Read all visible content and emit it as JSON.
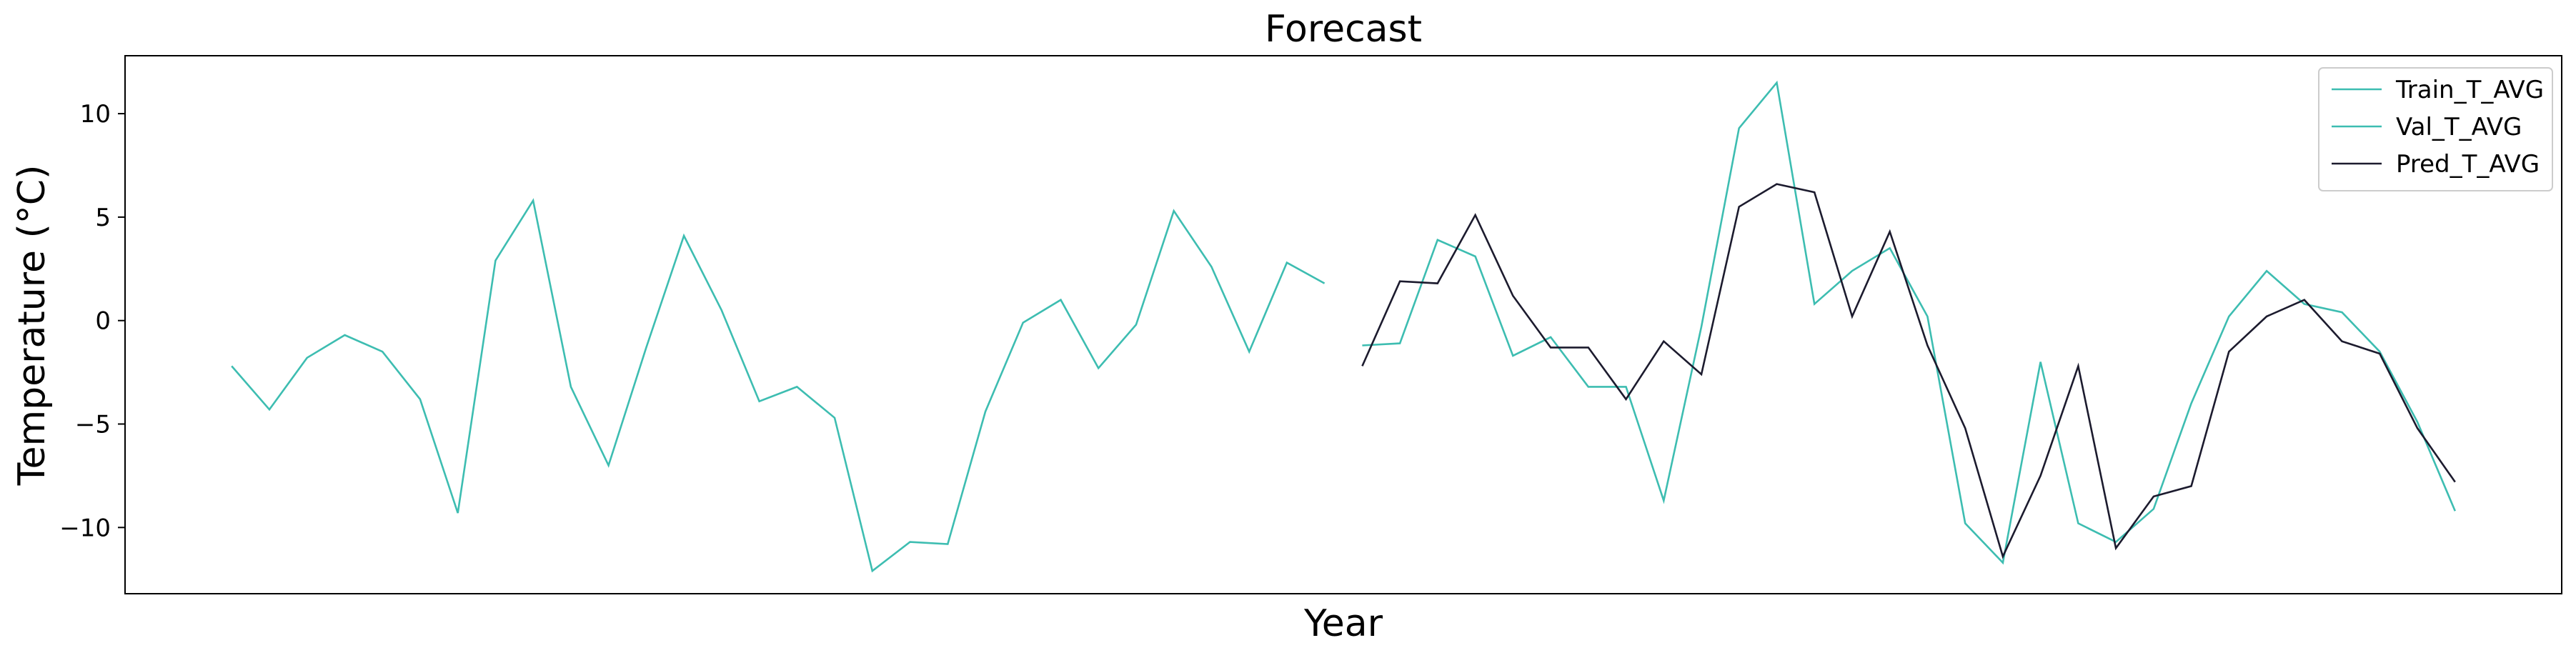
{
  "chart_data": {
    "type": "line",
    "title": "Forecast",
    "xlabel": "Year",
    "ylabel": "Temperature (°C)",
    "xticks": [],
    "yticks": [
      -10,
      -5,
      0,
      5,
      10
    ],
    "ylim": [
      -13.2,
      12.8
    ],
    "xlim": [
      -2.83,
      61.83
    ],
    "grid": false,
    "legend_position": "top-right",
    "series": [
      {
        "name": "Train_T_AVG",
        "color": "#3dbdb1",
        "x": [
          0,
          1,
          2,
          3,
          4,
          5,
          6,
          7,
          8,
          9,
          10,
          11,
          12,
          13,
          14,
          15,
          16,
          17,
          18,
          19,
          20,
          21,
          22,
          23,
          24,
          25,
          26,
          27,
          28,
          29
        ],
        "values": [
          -2.2,
          -4.3,
          -1.8,
          -0.7,
          -1.5,
          -3.8,
          -9.3,
          2.9,
          5.8,
          -3.2,
          -7.0,
          -1.3,
          4.1,
          0.5,
          -3.9,
          -3.2,
          -4.7,
          -12.1,
          -10.7,
          -10.8,
          -4.4,
          -0.1,
          1.0,
          -2.3,
          -0.2,
          5.3,
          2.6,
          -1.5,
          2.8,
          1.8
        ]
      },
      {
        "name": "Val_T_AVG",
        "color": "#3dbdb1",
        "x": [
          30,
          31,
          32,
          33,
          34,
          35,
          36,
          37,
          38,
          39,
          40,
          41,
          42,
          43,
          44,
          45,
          46,
          47,
          48,
          49,
          50,
          51,
          52,
          53,
          54,
          55,
          56,
          57,
          58,
          59
        ],
        "values": [
          -1.2,
          -1.1,
          3.9,
          3.1,
          -1.7,
          -0.8,
          -3.2,
          -3.2,
          -8.7,
          -0.3,
          9.3,
          11.5,
          0.8,
          2.4,
          3.5,
          0.2,
          -9.8,
          -11.7,
          -2.0,
          -9.8,
          -10.7,
          -9.1,
          -4.0,
          0.2,
          2.4,
          0.8,
          0.4,
          -1.5,
          -4.9,
          -9.2
        ]
      },
      {
        "name": "Pred_T_AVG",
        "color": "#1c1b2e",
        "x": [
          30,
          31,
          32,
          33,
          34,
          35,
          36,
          37,
          38,
          39,
          40,
          41,
          42,
          43,
          44,
          45,
          46,
          47,
          48,
          49,
          50,
          51,
          52,
          53,
          54,
          55,
          56,
          57,
          58,
          59
        ],
        "values": [
          -2.2,
          1.9,
          1.8,
          5.1,
          1.2,
          -1.3,
          -1.3,
          -3.8,
          -1.0,
          -2.6,
          5.5,
          6.6,
          6.2,
          0.2,
          4.3,
          -1.2,
          -5.2,
          -11.4,
          -7.5,
          -2.2,
          -11.0,
          -8.5,
          -8.0,
          -1.5,
          0.2,
          1.0,
          -1.0,
          -1.6,
          -5.2,
          -7.8
        ]
      }
    ]
  }
}
